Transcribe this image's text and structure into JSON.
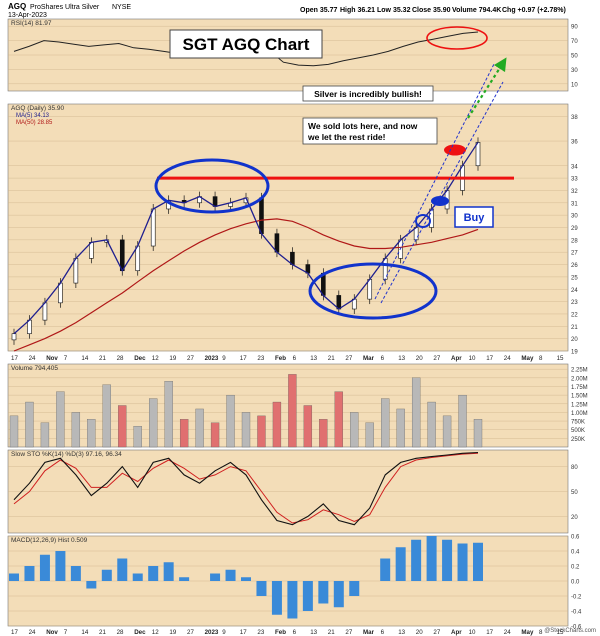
{
  "header": {
    "symbol": "AGQ",
    "name": "ProShares Ultra Silver",
    "exchange": "NYSE",
    "date": "13-Apr-2023",
    "open_label": "Open 35.77",
    "high_label": "High 36.21",
    "low_label": "Low 35.32",
    "close_label": "Close 35.90",
    "volume_label": "Volume 794.4K",
    "chg_label": "Chg +0.97 (+2.78%)",
    "brand": "@StockCharts.com"
  },
  "annotations": {
    "title": "SGT AGQ Chart",
    "bullish": "Silver is incredibly bullish!",
    "sold_line1": "We sold lots here, and now",
    "sold_line2": "we let the rest ride!",
    "buy": "Buy"
  },
  "colors": {
    "panel_bg": "#f3ddb8",
    "price_line": "#1f1f8f",
    "ma_red": "#b01818",
    "annot_red": "#ee1111",
    "annot_blue": "#1133cc",
    "bar_up": "#b8b8b8",
    "bar_down": "#e07070",
    "macd_bar": "#3a8ad8",
    "arrow_green": "#22aa22"
  },
  "chart_data": [
    {
      "type": "line",
      "panel": "rsi",
      "legend": "RSI(14) 81.97",
      "ylim": [
        0,
        100
      ],
      "y_ticks": [
        10,
        30,
        50,
        70,
        90
      ],
      "values": [
        55,
        62,
        70,
        68,
        65,
        62,
        64,
        66,
        60,
        58,
        55,
        52,
        50,
        46,
        48,
        52,
        55,
        57,
        40,
        36,
        35,
        37,
        42,
        46,
        50,
        55,
        62,
        68,
        72,
        76,
        80,
        82
      ]
    },
    {
      "type": "line",
      "panel": "price",
      "legend": "AGQ (Daily) 35.90",
      "ma_fast_legend": "MA(5) 34.13",
      "ma_slow_legend": "MA(50) 28.85",
      "ylim": [
        19,
        39
      ],
      "y_ticks": [
        19,
        20,
        21,
        22,
        23,
        24,
        25,
        26,
        27,
        28,
        29,
        30,
        31,
        32,
        33,
        34,
        36,
        38
      ],
      "close": [
        20.4,
        21.5,
        22.9,
        24.5,
        26.5,
        27.8,
        28.0,
        25.5,
        27.5,
        30.5,
        31.2,
        31.0,
        31.5,
        30.7,
        31.0,
        31.4,
        28.5,
        27.0,
        26.0,
        25.3,
        23.5,
        22.4,
        23.2,
        24.8,
        26.5,
        28.0,
        29.0,
        30.5,
        32.0,
        34.0,
        35.9
      ],
      "ma50": [
        19.0,
        19.5,
        20.0,
        20.6,
        21.3,
        22.1,
        22.9,
        23.7,
        24.6,
        25.5,
        26.3,
        27.1,
        27.8,
        28.4,
        28.9,
        29.3,
        29.6,
        29.7,
        29.5,
        29.0,
        28.4,
        27.9,
        27.5,
        27.3,
        27.3,
        27.4,
        27.6,
        27.8,
        28.1,
        28.4,
        28.85
      ],
      "resistance": 33
    },
    {
      "type": "bar",
      "panel": "volume",
      "legend": "Volume 794,405",
      "y_tick_labels": [
        "2.25M",
        "2.00M",
        "1.75M",
        "1.50M",
        "1.25M",
        "1.00M",
        "750K",
        "500K",
        "250K"
      ],
      "values": [
        0.9,
        1.3,
        0.7,
        1.6,
        1.0,
        0.8,
        1.8,
        1.2,
        0.6,
        1.4,
        1.9,
        0.8,
        1.1,
        0.7,
        1.5,
        1.0,
        0.9,
        1.3,
        2.1,
        1.2,
        0.8,
        1.6,
        1.0,
        0.7,
        1.4,
        1.1,
        2.0,
        1.3,
        0.9,
        1.5,
        0.8
      ]
    },
    {
      "type": "line",
      "panel": "stochastic",
      "legend": "Slow STO %K(14) %D(3) 97.16, 96.34",
      "ylim": [
        0,
        100
      ],
      "y_ticks": [
        20,
        50,
        80
      ],
      "k": [
        40,
        60,
        85,
        90,
        70,
        45,
        60,
        80,
        55,
        85,
        90,
        70,
        60,
        75,
        85,
        70,
        40,
        15,
        10,
        20,
        35,
        15,
        10,
        30,
        70,
        85,
        90,
        92,
        94,
        96,
        97
      ],
      "d": [
        35,
        50,
        75,
        88,
        78,
        55,
        55,
        72,
        62,
        78,
        88,
        78,
        65,
        70,
        80,
        75,
        50,
        25,
        12,
        16,
        28,
        22,
        14,
        22,
        55,
        80,
        88,
        91,
        93,
        95,
        96
      ]
    },
    {
      "type": "bar",
      "panel": "macd",
      "legend": "MACD(12,26,9) Hist 0.509",
      "ylim": [
        -0.6,
        0.6
      ],
      "y_ticks": [
        -0.6,
        -0.4,
        -0.2,
        0.0,
        0.2,
        0.4,
        0.6
      ],
      "values": [
        0.1,
        0.2,
        0.35,
        0.4,
        0.2,
        -0.1,
        0.15,
        0.3,
        0.1,
        0.2,
        0.25,
        0.05,
        0.0,
        0.1,
        0.15,
        0.05,
        -0.2,
        -0.45,
        -0.5,
        -0.4,
        -0.3,
        -0.35,
        -0.2,
        0.0,
        0.3,
        0.45,
        0.55,
        0.6,
        0.55,
        0.5,
        0.51
      ]
    }
  ],
  "x_axis": {
    "labels": [
      "17",
      "24",
      "Nov",
      "7",
      "14",
      "21",
      "28",
      "Dec",
      "12",
      "19",
      "27",
      "2023",
      "9",
      "17",
      "23",
      "Feb",
      "6",
      "13",
      "21",
      "27",
      "Mar",
      "6",
      "13",
      "20",
      "27",
      "Apr",
      "10",
      "17",
      "24",
      "May",
      "8",
      "15"
    ]
  }
}
